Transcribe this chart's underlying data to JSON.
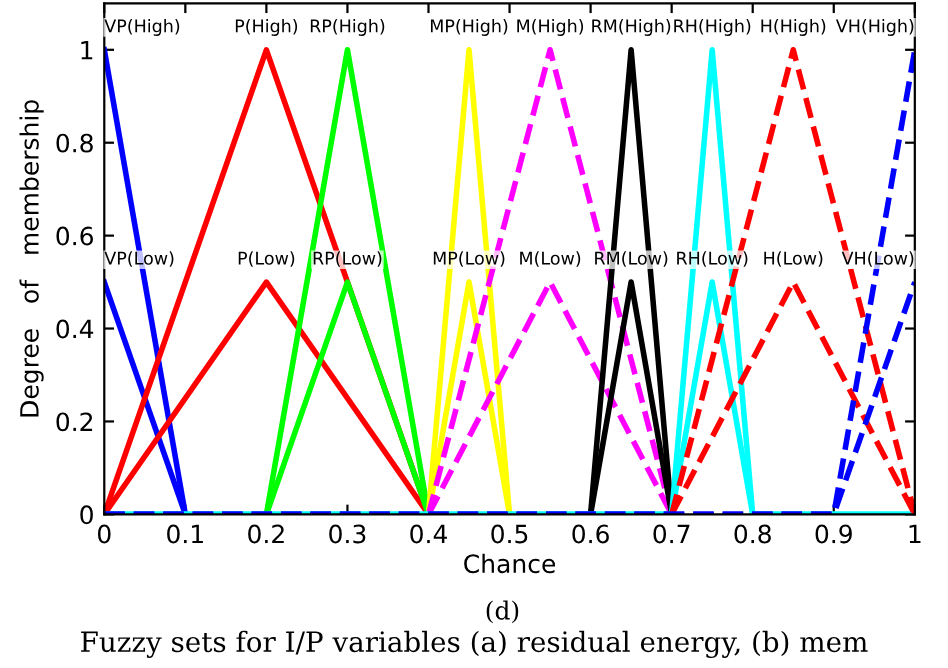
{
  "chart_data": {
    "type": "line",
    "xlabel": "Chance",
    "ylabel": "Degree   of   membership",
    "xlim": [
      0,
      1
    ],
    "ylim": [
      0,
      1.1
    ],
    "xticks": [
      0,
      0.1,
      0.2,
      0.3,
      0.4,
      0.5,
      0.6,
      0.7,
      0.8,
      0.9,
      1
    ],
    "yticks": [
      0,
      0.2,
      0.4,
      0.6,
      0.8,
      1
    ],
    "grid": false,
    "marker": "none",
    "series": [
      {
        "color": "#0000ff",
        "x": [
          0,
          0.1
        ],
        "values": [
          1,
          0
        ]
      },
      {
        "color": "#0000ff",
        "x": [
          0,
          0.1
        ],
        "values": [
          0.5,
          0
        ]
      },
      {
        "color": "#ff0000",
        "x": [
          0,
          0.2,
          0.4
        ],
        "values": [
          0,
          1,
          0
        ]
      },
      {
        "color": "#ff0000",
        "x": [
          0,
          0.2,
          0.4
        ],
        "values": [
          0,
          0.5,
          0
        ]
      },
      {
        "color": "#00ff00",
        "x": [
          0.2,
          0.3,
          0.4
        ],
        "values": [
          0,
          1,
          0
        ]
      },
      {
        "color": "#00ff00",
        "x": [
          0.2,
          0.3,
          0.4
        ],
        "values": [
          0,
          0.5,
          0
        ]
      },
      {
        "color": "#ffff00",
        "x": [
          0.4,
          0.45,
          0.5
        ],
        "values": [
          0,
          1,
          0
        ]
      },
      {
        "color": "#ffff00",
        "x": [
          0.4,
          0.45,
          0.5
        ],
        "values": [
          0,
          0.5,
          0
        ]
      },
      {
        "color": "#ff00ff",
        "line_style": "dashed",
        "x": [
          0.4,
          0.55,
          0.7
        ],
        "values": [
          0,
          1,
          0
        ]
      },
      {
        "color": "#ff00ff",
        "line_style": "dashed",
        "x": [
          0.4,
          0.55,
          0.7
        ],
        "values": [
          0,
          0.5,
          0
        ]
      },
      {
        "color": "#000000",
        "x": [
          0.6,
          0.65,
          0.7
        ],
        "values": [
          0,
          1,
          0
        ]
      },
      {
        "color": "#000000",
        "x": [
          0.6,
          0.65,
          0.7
        ],
        "values": [
          0,
          0.5,
          0
        ]
      },
      {
        "color": "#00ffff",
        "x": [
          0,
          0.7,
          0.75,
          0.8,
          1
        ],
        "values": [
          0,
          0,
          1,
          0,
          0
        ]
      },
      {
        "color": "#00ffff",
        "x": [
          0,
          0.7,
          0.75,
          0.8,
          1
        ],
        "values": [
          0,
          0,
          0.5,
          0,
          0
        ]
      },
      {
        "color": "#ff0000",
        "line_style": "dashed",
        "x": [
          0.7,
          0.85,
          1
        ],
        "values": [
          0,
          1,
          0
        ]
      },
      {
        "color": "#ff0000",
        "line_style": "dashed",
        "x": [
          0.7,
          0.85,
          1
        ],
        "values": [
          0,
          0.5,
          0
        ]
      },
      {
        "color": "#0000ff",
        "line_style": "dashed",
        "x": [
          0,
          0.9,
          1
        ],
        "values": [
          0,
          0,
          1
        ]
      },
      {
        "color": "#0000ff",
        "line_style": "dashed",
        "x": [
          0,
          0.9,
          1
        ],
        "values": [
          0,
          0,
          0.5
        ]
      }
    ],
    "annotations": [
      {
        "text": "VP(High)",
        "x": 0,
        "y": 1
      },
      {
        "text": "P(High)",
        "x": 0.2,
        "y": 1
      },
      {
        "text": "RP(High)",
        "x": 0.3,
        "y": 1
      },
      {
        "text": "MP(High)",
        "x": 0.45,
        "y": 1
      },
      {
        "text": "M(High)",
        "x": 0.55,
        "y": 1
      },
      {
        "text": "RM(High)",
        "x": 0.65,
        "y": 1
      },
      {
        "text": "RH(High)",
        "x": 0.75,
        "y": 1
      },
      {
        "text": "H(High)",
        "x": 0.85,
        "y": 1
      },
      {
        "text": "VH(High)",
        "x": 1,
        "y": 1
      },
      {
        "text": "VP(Low)",
        "x": 0,
        "y": 0.5
      },
      {
        "text": "P(Low)",
        "x": 0.2,
        "y": 0.5
      },
      {
        "text": "RP(Low)",
        "x": 0.3,
        "y": 0.5
      },
      {
        "text": "MP(Low)",
        "x": 0.45,
        "y": 0.5
      },
      {
        "text": "M(Low)",
        "x": 0.55,
        "y": 0.5
      },
      {
        "text": "RM(Low)",
        "x": 0.65,
        "y": 0.5
      },
      {
        "text": "RH(Low)",
        "x": 0.75,
        "y": 0.5
      },
      {
        "text": "H(Low)",
        "x": 0.85,
        "y": 0.5
      },
      {
        "text": "VH(Low)",
        "x": 1,
        "y": 0.5
      },
      "(d)",
      "Fuzzy sets for I/P variables (a) residual energy, (b) mem"
    ]
  }
}
